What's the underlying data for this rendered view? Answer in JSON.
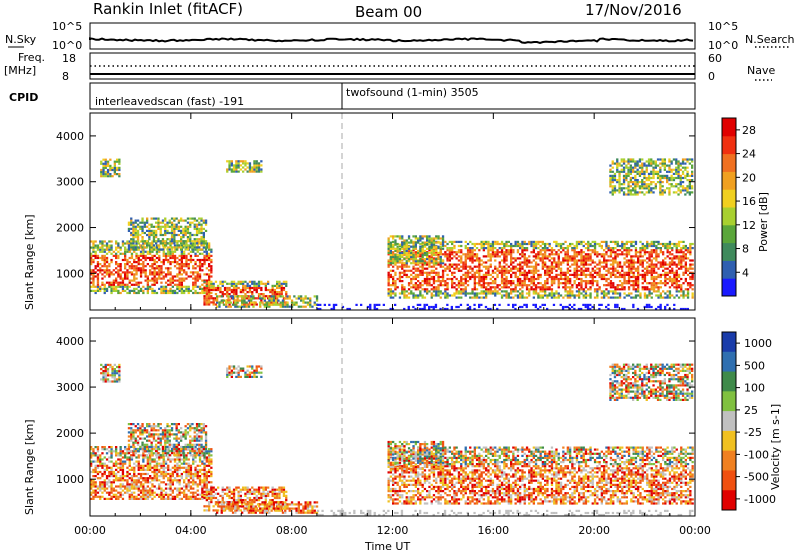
{
  "header": {
    "station": "Rankin Inlet (fitACF)",
    "beam": "Beam 00",
    "date": "17/Nov/2016"
  },
  "strip_labels": {
    "nsky": "N.Sky",
    "nsky_top": "10^5",
    "nsky_bot": "10^0",
    "nsky_top_r": "10^5",
    "nsky_bot_r": "10^0",
    "nsearch": "N.Search",
    "freq1": "Freq.",
    "freq2": "[MHz]",
    "freq_top": "18",
    "freq_bot": "8",
    "nave_top": "60",
    "nave_bot": "0",
    "nave": "Nave",
    "cpid": "CPID",
    "mode1": "interleavedscan (fast) -191",
    "mode2": "twofsound (1-min) 3505"
  },
  "colors": {
    "power": [
      "#1a1aff",
      "#2f5fb0",
      "#3f8a5c",
      "#5aa63a",
      "#a8d030",
      "#f0d020",
      "#f0a020",
      "#f07020",
      "#f03010",
      "#e00000"
    ],
    "velocity_pos": [
      "#1a3caa",
      "#2f6fb0",
      "#3f8a4a",
      "#80c040"
    ],
    "velocity_mid": "#c0c0c0",
    "velocity_neg": [
      "#f0c020",
      "#f08020",
      "#f05010",
      "#e00000"
    ]
  },
  "chart_data": [
    {
      "type": "heatmap",
      "title": "",
      "xlabel": "",
      "ylabel": "Slant Range [km]",
      "x_ticks": [
        "00:00",
        "04:00",
        "08:00",
        "12:00",
        "16:00",
        "20:00",
        "00:00"
      ],
      "xlim_hours": [
        0,
        24
      ],
      "ylim": [
        200,
        4500
      ],
      "y_ticks": [
        1000,
        2000,
        3000,
        4000
      ],
      "colorbar": {
        "label": "Power [dB]",
        "ticks": [
          4,
          8,
          12,
          16,
          20,
          24,
          28
        ],
        "range": [
          0,
          30
        ]
      }
    },
    {
      "type": "heatmap",
      "title": "",
      "xlabel": "Time UT",
      "ylabel": "Slant Range [km]",
      "x_ticks": [
        "00:00",
        "04:00",
        "08:00",
        "12:00",
        "16:00",
        "20:00",
        "00:00"
      ],
      "xlim_hours": [
        0,
        24
      ],
      "ylim": [
        200,
        4500
      ],
      "y_ticks": [
        1000,
        2000,
        3000,
        4000
      ],
      "colorbar": {
        "label": "Velocity [m s-1]",
        "ticks": [
          "1000",
          "500",
          "100",
          "25",
          "-25",
          "-100",
          "-500",
          "-1000"
        ]
      }
    }
  ]
}
